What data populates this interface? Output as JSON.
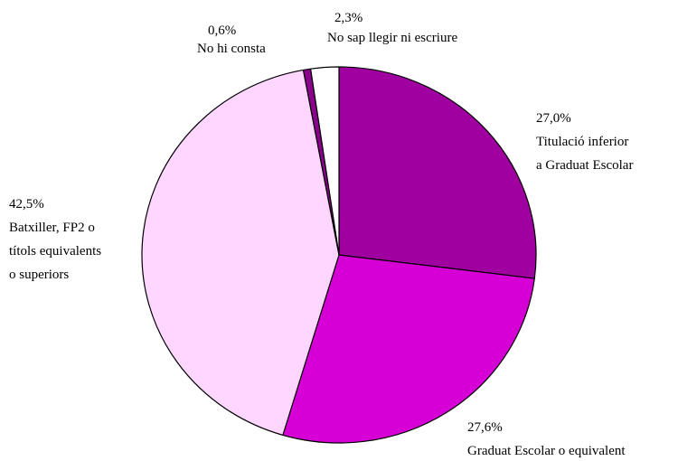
{
  "chart_data": {
    "type": "pie",
    "title": "",
    "slices": [
      {
        "value": 27.0,
        "pct_label": "27,0%",
        "label_lines": [
          "Titulació inferior",
          "a Graduat Escolar"
        ],
        "color": "#A000A0"
      },
      {
        "value": 27.6,
        "pct_label": "27,6%",
        "label_lines": [
          "Graduat Escolar o equivalent"
        ],
        "color": "#D600D6"
      },
      {
        "value": 42.5,
        "pct_label": "42,5%",
        "label_lines": [
          "Batxiller, FP2 o",
          "títols equivalents",
          "o superiors"
        ],
        "color": "#FFD6FF"
      },
      {
        "value": 0.6,
        "pct_label": "0,6%",
        "label_lines": [
          "No hi consta"
        ],
        "color": "#8B008B"
      },
      {
        "value": 2.3,
        "pct_label": "2,3%",
        "label_lines": [
          "No sap llegir ni escriure"
        ],
        "color": "#FFFFFF"
      }
    ],
    "start_angle_deg": 0,
    "direction": "clockwise",
    "legend": "none"
  }
}
